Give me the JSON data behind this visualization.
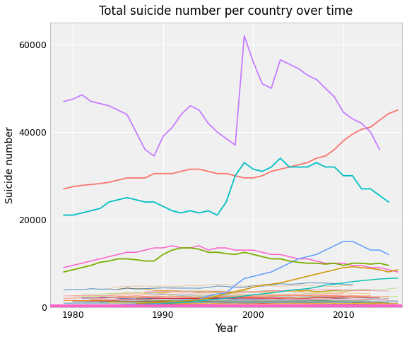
{
  "title": "Total suicide number per country over time",
  "xlabel": "Year",
  "ylabel": "Suicide number",
  "ylim": [
    0,
    65000
  ],
  "yticks": [
    0,
    20000,
    40000,
    60000
  ],
  "ytick_labels": [
    "0",
    "20000",
    "40000",
    "60000"
  ],
  "xticks": [
    1980,
    1990,
    2000,
    2010
  ],
  "xlim": [
    1977.5,
    2016.5
  ],
  "background_color": "#ffffff",
  "panel_color": "#f0f0f0",
  "grid_color": "#ffffff",
  "russia": {
    "color": "#c77cff",
    "years": [
      1979,
      1980,
      1981,
      1982,
      1983,
      1984,
      1985,
      1986,
      1987,
      1988,
      1989,
      1990,
      1991,
      1992,
      1993,
      1994,
      1995,
      1996,
      1997,
      1998,
      1999,
      2000,
      2001,
      2002,
      2003,
      2004,
      2005,
      2006,
      2007,
      2008,
      2009,
      2010,
      2011,
      2012,
      2013,
      2014
    ],
    "values": [
      47000,
      47500,
      48500,
      47000,
      46500,
      46000,
      45000,
      44000,
      40000,
      36000,
      34500,
      39000,
      41000,
      44000,
      46000,
      45000,
      42000,
      40000,
      38500,
      37000,
      62000,
      56000,
      51000,
      50000,
      56500,
      55500,
      54500,
      53000,
      52000,
      50000,
      48000,
      44500,
      43000,
      42000,
      40000,
      36000
    ]
  },
  "usa": {
    "color": "#f8766d",
    "years": [
      1979,
      1980,
      1981,
      1982,
      1983,
      1984,
      1985,
      1986,
      1987,
      1988,
      1989,
      1990,
      1991,
      1992,
      1993,
      1994,
      1995,
      1996,
      1997,
      1998,
      1999,
      2000,
      2001,
      2002,
      2003,
      2004,
      2005,
      2006,
      2007,
      2008,
      2009,
      2010,
      2011,
      2012,
      2013,
      2014,
      2015,
      2016
    ],
    "values": [
      27000,
      27500,
      27800,
      28000,
      28200,
      28500,
      29000,
      29500,
      29500,
      29500,
      30500,
      30500,
      30500,
      31000,
      31500,
      31500,
      31000,
      30500,
      30500,
      30000,
      29500,
      29500,
      30000,
      31000,
      31500,
      32000,
      32500,
      33000,
      34000,
      34500,
      36000,
      38000,
      39500,
      40600,
      41100,
      42700,
      44193,
      45000
    ]
  },
  "japan": {
    "color": "#00bfc4",
    "years": [
      1979,
      1980,
      1981,
      1982,
      1983,
      1984,
      1985,
      1986,
      1987,
      1988,
      1989,
      1990,
      1991,
      1992,
      1993,
      1994,
      1995,
      1996,
      1997,
      1998,
      1999,
      2000,
      2001,
      2002,
      2003,
      2004,
      2005,
      2006,
      2007,
      2008,
      2009,
      2010,
      2011,
      2012,
      2013,
      2014,
      2015
    ],
    "values": [
      21000,
      21000,
      21500,
      22000,
      22500,
      24000,
      24500,
      25000,
      24500,
      24000,
      24000,
      23000,
      22000,
      21500,
      22000,
      21500,
      22000,
      21000,
      24000,
      30000,
      33000,
      31500,
      31000,
      32000,
      34000,
      32000,
      32000,
      32000,
      33000,
      32000,
      32000,
      30000,
      30000,
      27000,
      27000,
      25500,
      24000
    ]
  },
  "germany": {
    "color": "#7cae00",
    "years": [
      1979,
      1980,
      1981,
      1982,
      1983,
      1984,
      1985,
      1986,
      1987,
      1988,
      1989,
      1990,
      1991,
      1992,
      1993,
      1994,
      1995,
      1996,
      1997,
      1998,
      1999,
      2000,
      2001,
      2002,
      2003,
      2004,
      2005,
      2006,
      2007,
      2008,
      2009,
      2010,
      2011,
      2012,
      2013,
      2014,
      2015
    ],
    "values": [
      8000,
      8500,
      9000,
      9500,
      10200,
      10500,
      11000,
      11000,
      10800,
      10500,
      10500,
      12000,
      13000,
      13500,
      13500,
      13200,
      12500,
      12500,
      12200,
      12000,
      12500,
      12000,
      11500,
      11000,
      11000,
      10500,
      10200,
      10000,
      10000,
      9800,
      10000,
      9500,
      10000,
      10000,
      9800,
      10000,
      9500
    ]
  },
  "france_pink": {
    "color": "#ff61cc",
    "years": [
      1979,
      1980,
      1981,
      1982,
      1983,
      1984,
      1985,
      1986,
      1987,
      1988,
      1989,
      1990,
      1991,
      1992,
      1993,
      1994,
      1995,
      1996,
      1997,
      1998,
      1999,
      2000,
      2001,
      2002,
      2003,
      2004,
      2005,
      2006,
      2007,
      2008,
      2009,
      2010,
      2011,
      2012,
      2013,
      2014,
      2015,
      2016
    ],
    "values": [
      9000,
      9500,
      10000,
      10500,
      11000,
      11500,
      12000,
      12500,
      12500,
      13000,
      13500,
      13500,
      14000,
      13500,
      13500,
      14000,
      13000,
      13500,
      13500,
      13000,
      13000,
      13000,
      12500,
      12000,
      12000,
      11500,
      11000,
      11000,
      10500,
      10000,
      10000,
      10000,
      9500,
      9500,
      9000,
      9000,
      8500,
      8000
    ]
  },
  "korea": {
    "color": "#619cff",
    "years": [
      1985,
      1986,
      1987,
      1988,
      1989,
      1990,
      1991,
      1992,
      1993,
      1994,
      1995,
      1996,
      1997,
      1998,
      1999,
      2000,
      2001,
      2002,
      2003,
      2004,
      2005,
      2006,
      2007,
      2008,
      2009,
      2010,
      2011,
      2012,
      2013,
      2014,
      2015
    ],
    "values": [
      500,
      600,
      700,
      800,
      900,
      1000,
      1200,
      1400,
      1600,
      1800,
      2500,
      3000,
      3200,
      5000,
      6500,
      7000,
      7500,
      8000,
      9000,
      10000,
      11000,
      11500,
      12000,
      13000,
      14000,
      15000,
      15000,
      14000,
      13000,
      13000,
      12000
    ]
  },
  "gold_line": {
    "color": "#cd9600",
    "years": [
      1987,
      1988,
      1989,
      1990,
      1991,
      1992,
      1993,
      1994,
      1995,
      1996,
      1997,
      1998,
      1999,
      2000,
      2001,
      2002,
      2003,
      2004,
      2005,
      2006,
      2007,
      2008,
      2009,
      2010,
      2011,
      2012,
      2013,
      2014,
      2015,
      2016
    ],
    "values": [
      800,
      900,
      1000,
      1100,
      1200,
      1300,
      1500,
      1700,
      2000,
      2500,
      3000,
      3500,
      4000,
      4500,
      5000,
      5200,
      5500,
      6000,
      6500,
      7000,
      7500,
      8000,
      8500,
      9000,
      9200,
      9000,
      8800,
      8500,
      8000,
      8500
    ]
  },
  "teal_small": {
    "color": "#00c0af",
    "years": [
      1987,
      1988,
      1989,
      1990,
      1991,
      1992,
      1993,
      1994,
      1995,
      1996,
      1997,
      1998,
      1999,
      2000,
      2001,
      2002,
      2003,
      2004,
      2005,
      2006,
      2007,
      2008,
      2009,
      2010,
      2011,
      2012,
      2013,
      2014,
      2015,
      2016
    ],
    "values": [
      500,
      600,
      700,
      800,
      900,
      1000,
      1200,
      1400,
      1600,
      1800,
      2000,
      2200,
      2500,
      2800,
      3000,
      3200,
      3500,
      3800,
      4000,
      4200,
      4500,
      5000,
      5200,
      5500,
      5800,
      6000,
      6200,
      6400,
      6500,
      6600
    ]
  },
  "hotpink_flat": {
    "color": "#ff61cc",
    "linewidth": 3.5,
    "y": 200
  },
  "small_series_seed": 42,
  "small_series_n": 55,
  "small_series_colors": [
    "#e58700",
    "#00c0af",
    "#a3a500",
    "#f8766d",
    "#7cae00",
    "#cd9600",
    "#00bf7d",
    "#e76bf3",
    "#ff61cc",
    "#00bfc4",
    "#b79f00",
    "#00b4c8",
    "#80b1d3",
    "#fdb462",
    "#fb8072",
    "#bc80bd",
    "#ccebc5",
    "#d9d9d9",
    "#bebada",
    "#8dd3c7",
    "#fb8072",
    "#80b1d3",
    "#fdb462",
    "#b3de69",
    "#d9d9d9",
    "#bc80bd",
    "#ff7f00",
    "#1f78b4",
    "#e31a1c",
    "#33a02c",
    "#6a3d9a",
    "#b15928",
    "#a6cee3",
    "#b2df8a",
    "#fb9a99",
    "#fdbf6f",
    "#cab2d6",
    "#ffff99",
    "#e41a1c",
    "#377eb8",
    "#4daf4a",
    "#984ea3",
    "#ff7f00",
    "#a65628",
    "#f781bf",
    "#999999",
    "#66c2a5",
    "#fc8d62",
    "#8da0cb",
    "#e78ac3",
    "#a6d854",
    "#ffd92f",
    "#e5c494",
    "#b3b3b3",
    "#ff9896"
  ]
}
